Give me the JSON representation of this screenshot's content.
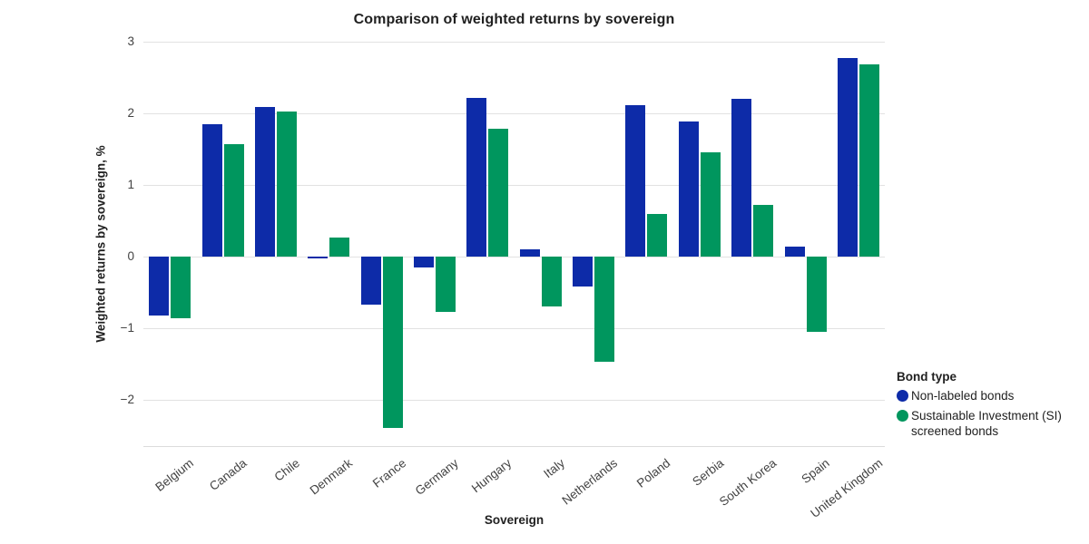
{
  "title": "Comparison of weighted returns by sovereign",
  "axes": {
    "x_title": "Sovereign",
    "y_title": "Weighted returns by sovereign, %"
  },
  "legend": {
    "title": "Bond type",
    "items": [
      {
        "label": "Non-labeled bonds",
        "color": "#0d2ba8"
      },
      {
        "label": "Sustainable Investment (SI) screened bonds",
        "color": "#00965e"
      }
    ]
  },
  "colors": {
    "series_blue": "#0d2ba8",
    "series_green": "#00965e",
    "gridline": "#e2e2e2",
    "axis_text": "#424242",
    "title_text": "#212121"
  },
  "chart_data": {
    "type": "bar",
    "title": "Comparison of weighted returns by sovereign",
    "xlabel": "Sovereign",
    "ylabel": "Weighted returns by sovereign, %",
    "categories": [
      "Belgium",
      "Canada",
      "Chile",
      "Denmark",
      "France",
      "Germany",
      "Hungary",
      "Italy",
      "Netherlands",
      "Poland",
      "Serbia",
      "South Korea",
      "Spain",
      "United Kingdom"
    ],
    "series": [
      {
        "name": "Non-labeled bonds",
        "color": "#0d2ba8",
        "values": [
          -0.83,
          1.85,
          2.09,
          -0.03,
          -0.67,
          -0.15,
          2.22,
          0.1,
          -0.42,
          2.12,
          1.88,
          2.2,
          0.14,
          2.77
        ]
      },
      {
        "name": "Sustainable Investment (SI) screened bonds",
        "color": "#00965e",
        "values": [
          -0.87,
          1.57,
          2.02,
          0.26,
          -2.4,
          -0.78,
          1.78,
          -0.7,
          -1.47,
          0.59,
          1.46,
          0.72,
          -1.05,
          2.68
        ]
      }
    ],
    "ylim": [
      -2.65,
      3
    ],
    "yticks": [
      {
        "value": 3,
        "label": "3"
      },
      {
        "value": 2,
        "label": "2"
      },
      {
        "value": 1,
        "label": "1"
      },
      {
        "value": 0,
        "label": "0"
      },
      {
        "value": -1,
        "label": "−1"
      },
      {
        "value": -2,
        "label": "−2"
      }
    ],
    "grid": true,
    "legend_position": "right"
  }
}
